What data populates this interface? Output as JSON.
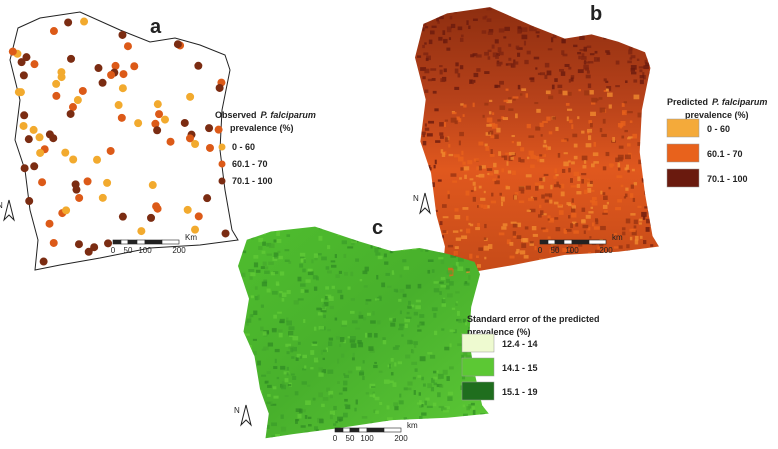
{
  "panels": [
    {
      "label": "a",
      "legend": {
        "title_line1": "Observed",
        "title_italic": "P. falciparum",
        "title_line2": "prevalence (%)",
        "classes": [
          "0 - 60",
          "60.1 - 70",
          "70.1 - 100"
        ],
        "colors": [
          "#f2aa2e",
          "#dc5a18",
          "#7b2c12"
        ]
      },
      "scale_bar": {
        "labels": [
          "0",
          "50",
          "100",
          "200"
        ],
        "unit": "Km"
      },
      "north": "N"
    },
    {
      "label": "b",
      "legend": {
        "title_line1": "Predicted",
        "title_italic": "P. falciparum",
        "title_line2": "prevalence (%)",
        "classes": [
          "0 - 60",
          "60.1 - 70",
          "70.1 - 100"
        ],
        "colors": [
          "#f4aa3a",
          "#e8621c",
          "#6a1a0e"
        ]
      },
      "scale_bar": {
        "labels": [
          "0",
          "50",
          "100",
          "200"
        ],
        "unit": "km"
      },
      "north": "N"
    },
    {
      "label": "c",
      "legend": {
        "title_line1": "Standard error of the predicted",
        "title_line2": "prevalence (%)",
        "classes": [
          "12.4 - 14",
          "14.1 - 15",
          "15.1 - 19"
        ],
        "colors": [
          "#eefad0",
          "#5cc834",
          "#1f6e1e"
        ]
      },
      "scale_bar": {
        "labels": [
          "0",
          "50",
          "100",
          "200"
        ],
        "unit": "km"
      },
      "north": "N"
    }
  ]
}
